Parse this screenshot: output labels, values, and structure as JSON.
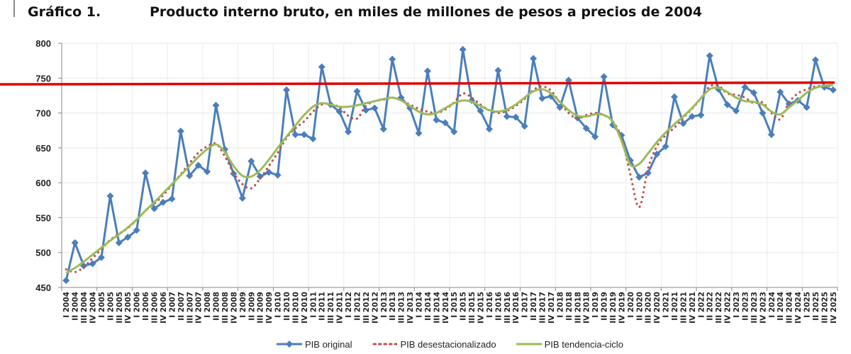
{
  "header": {
    "figure_label": "Gráfico 1.",
    "figure_title": "Producto interno bruto, en miles de millones de pesos a precios de 2004"
  },
  "legend": {
    "items": [
      {
        "label": "PIB original",
        "color": "#4a7ebb",
        "style": "line-diamond"
      },
      {
        "label": "PIB desestacionalizado",
        "color": "#c0504d",
        "style": "dotted"
      },
      {
        "label": "PIB tendencia-ciclo",
        "color": "#9bbb59",
        "style": "line"
      }
    ]
  },
  "chart_data": {
    "type": "line",
    "title": "Producto interno bruto, en miles de millones de pesos a precios de 2004",
    "xlabel": "",
    "ylabel": "",
    "ylim": [
      450,
      800
    ],
    "yticks": [
      450,
      500,
      550,
      600,
      650,
      700,
      750,
      800
    ],
    "grid": true,
    "legend_position": "bottom",
    "reference_line": {
      "y": 742,
      "color": "#e00000",
      "label": ""
    },
    "categories": [
      "I 2004",
      "II 2004",
      "III 2004",
      "IV 2004",
      "I 2005",
      "II 2005",
      "III 2005",
      "IV 2005",
      "I 2006",
      "II 2006",
      "III 2006",
      "IV 2006",
      "I 2007",
      "II 2007",
      "III 2007",
      "IV 2007",
      "I 2008",
      "II 2008",
      "III 2008",
      "IV 2008",
      "I 2009",
      "II 2009",
      "III 2009",
      "IV 2009",
      "I 2010",
      "II 2010",
      "III 2010",
      "IV 2010",
      "I 2011",
      "II 2011",
      "III 2011",
      "IV 2011",
      "I 2012",
      "II 2012",
      "III 2012",
      "IV 2012",
      "I 2013",
      "II 2013",
      "III 2013",
      "IV 2013",
      "I 2014",
      "II 2014",
      "III 2014",
      "IV 2014",
      "I 2015",
      "II 2015",
      "III 2015",
      "IV 2015",
      "I 2016",
      "II 2016",
      "III 2016",
      "IV 2016",
      "I 2017",
      "II 2017",
      "III 2017",
      "IV 2017",
      "I 2018",
      "II 2018",
      "III 2018",
      "IV 2018",
      "I 2019",
      "II 2019",
      "III 2019",
      "IV 2019",
      "I 2020",
      "II 2020",
      "III 2020",
      "IV 2020",
      "I 2021",
      "II 2021",
      "III 2021",
      "IV 2021",
      "I 2022",
      "II 2022",
      "III 2022",
      "IV 2022",
      "I 2023",
      "II 2023",
      "III 2023",
      "IV 2023",
      "I 2024",
      "II 2024",
      "III 2024",
      "IV 2024",
      "I 2025",
      "II 2025",
      "III 2025",
      "IV 2025"
    ],
    "series": [
      {
        "name": "PIB original",
        "color": "#4a7ebb",
        "values": [
          460,
          514,
          481,
          484,
          493,
          581,
          514,
          522,
          532,
          614,
          563,
          572,
          577,
          674,
          610,
          625,
          616,
          711,
          648,
          613,
          578,
          631,
          609,
          615,
          611,
          733,
          669,
          669,
          663,
          766,
          712,
          702,
          673,
          731,
          704,
          707,
          677,
          777,
          722,
          707,
          671,
          760,
          690,
          686,
          673,
          791,
          718,
          703,
          677,
          761,
          695,
          694,
          681,
          778,
          721,
          724,
          708,
          747,
          693,
          678,
          666,
          752,
          683,
          668,
          632,
          608,
          614,
          641,
          652,
          723,
          685,
          695,
          697,
          782,
          734,
          712,
          703,
          737,
          729,
          700,
          669,
          730,
          713,
          718,
          708,
          776,
          737,
          733
        ]
      },
      {
        "name": "PIB desestacionalizado",
        "color": "#c0504d",
        "values": [
          476,
          472,
          479,
          492,
          505,
          518,
          527,
          535,
          547,
          560,
          570,
          582,
          597,
          612,
          628,
          643,
          652,
          656,
          638,
          614,
          598,
          592,
          606,
          624,
          643,
          664,
          678,
          688,
          702,
          712,
          713,
          708,
          696,
          692,
          710,
          717,
          719,
          722,
          718,
          712,
          706,
          702,
          700,
          705,
          715,
          728,
          722,
          712,
          704,
          700,
          703,
          710,
          720,
          733,
          738,
          732,
          715,
          700,
          692,
          697,
          700,
          697,
          688,
          664,
          612,
          565,
          620,
          652,
          668,
          679,
          693,
          706,
          721,
          738,
          739,
          728,
          726,
          722,
          714,
          715,
          700,
          691,
          715,
          728,
          734,
          738,
          739,
          738
        ]
      },
      {
        "name": "PIB tendencia-ciclo",
        "color": "#9bbb59",
        "values": [
          471,
          478,
          487,
          497,
          507,
          517,
          526,
          536,
          547,
          560,
          572,
          585,
          598,
          611,
          624,
          637,
          648,
          655,
          644,
          624,
          610,
          609,
          618,
          633,
          650,
          666,
          682,
          697,
          709,
          714,
          712,
          709,
          709,
          711,
          714,
          717,
          720,
          722,
          718,
          710,
          702,
          698,
          700,
          707,
          714,
          718,
          716,
          710,
          704,
          702,
          705,
          712,
          722,
          731,
          734,
          728,
          716,
          704,
          696,
          695,
          698,
          697,
          688,
          660,
          626,
          627,
          642,
          658,
          672,
          684,
          695,
          707,
          721,
          734,
          736,
          730,
          722,
          717,
          716,
          712,
          702,
          698,
          708,
          718,
          729,
          736,
          739,
          740
        ]
      }
    ]
  }
}
